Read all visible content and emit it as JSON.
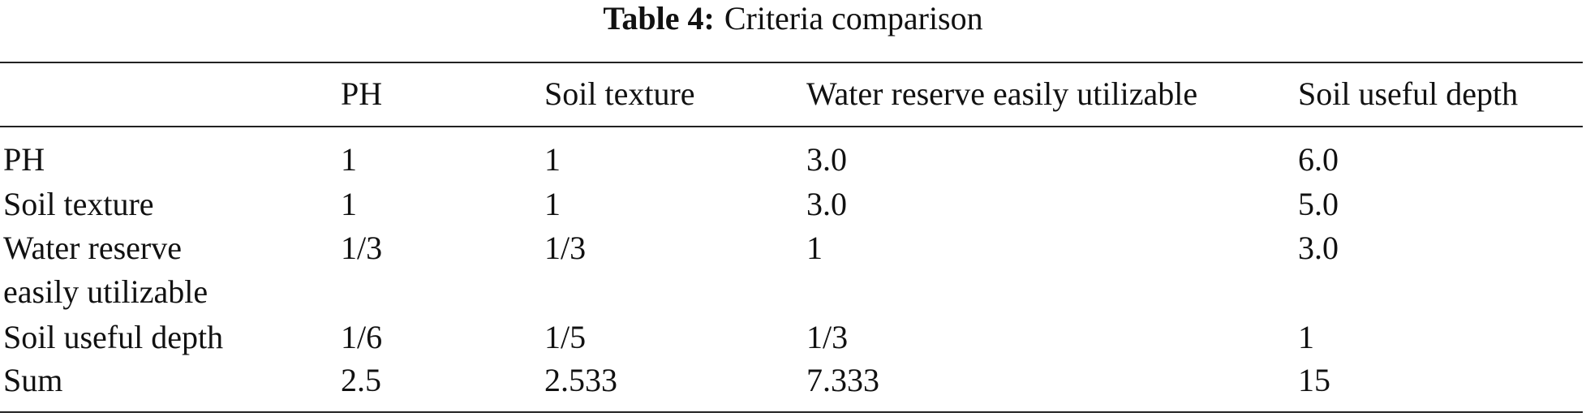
{
  "caption": {
    "label": "Table 4:",
    "text": "Criteria comparison"
  },
  "table": {
    "header": [
      "PH",
      "Soil texture",
      "Water reserve easily utilizable",
      "Soil useful depth"
    ],
    "rows": [
      [
        "PH",
        "1",
        "1",
        "3.0",
        "6.0"
      ],
      [
        "Soil texture",
        "1",
        "1",
        "3.0",
        "5.0"
      ],
      [
        "Water reserve easily utilizable",
        "1/3",
        "1/3",
        "1",
        "3.0"
      ],
      [
        "Soil useful depth",
        "1/6",
        "1/5",
        "1/3",
        "1"
      ],
      [
        "Sum",
        "2.5",
        "2.533",
        "7.333",
        "15"
      ]
    ]
  }
}
